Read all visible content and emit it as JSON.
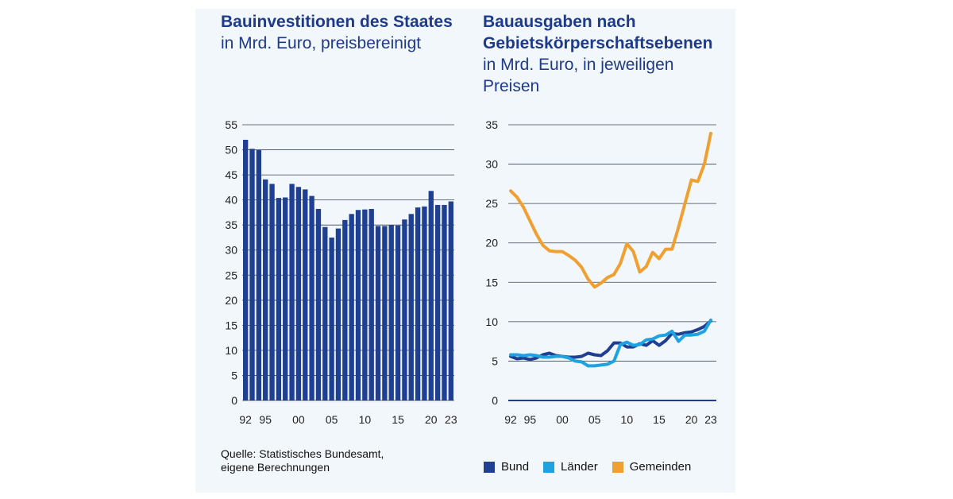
{
  "colors": {
    "bar": "#1f3f93",
    "bund": "#1f3f93",
    "laender": "#1ea3e0",
    "gemeinden": "#f0a030",
    "grid": "#3c4654",
    "axis": "#1f3f93"
  },
  "left": {
    "title_bold": "Bauinvestitionen des Staates",
    "title_rest": " in Mrd. Euro, preisbereinigt"
  },
  "right": {
    "title_bold": "Bauausgaben nach Gebietskörperschafts­ebenen",
    "title_rest": " in Mrd. Euro, in jeweiligen Preisen"
  },
  "source": {
    "line1": "Quelle: Statistisches Bundesamt,",
    "line2": "eigene Berechnungen"
  },
  "chart_data": [
    {
      "type": "bar",
      "title": "Bauinvestitionen des Staates in Mrd. Euro, preisbereinigt",
      "ylim": [
        0,
        55
      ],
      "yticks": [
        0,
        5,
        10,
        15,
        20,
        25,
        30,
        35,
        40,
        45,
        50,
        55
      ],
      "x_tick_labels": [
        "92",
        "95",
        "00",
        "05",
        "10",
        "15",
        "20",
        "23"
      ],
      "x_tick_years": [
        1992,
        1995,
        2000,
        2005,
        2010,
        2015,
        2020,
        2023
      ],
      "grid": true,
      "categories": [
        1992,
        1993,
        1994,
        1995,
        1996,
        1997,
        1998,
        1999,
        2000,
        2001,
        2002,
        2003,
        2004,
        2005,
        2006,
        2007,
        2008,
        2009,
        2010,
        2011,
        2012,
        2013,
        2014,
        2015,
        2016,
        2017,
        2018,
        2019,
        2020,
        2021,
        2022,
        2023
      ],
      "values": [
        52.0,
        50.2,
        50.0,
        44.1,
        43.2,
        40.4,
        40.5,
        43.2,
        42.6,
        42.1,
        40.8,
        38.2,
        34.6,
        32.5,
        34.3,
        36.0,
        37.2,
        38.0,
        38.1,
        38.2,
        34.8,
        34.8,
        35.0,
        34.9,
        36.1,
        37.2,
        38.5,
        38.7,
        41.8,
        39.0,
        39.0,
        39.7
      ]
    },
    {
      "type": "line",
      "title": "Bauausgaben nach Gebietskörperschaftsebenen in Mrd. Euro, in jeweiligen Preisen",
      "ylim": [
        0,
        35
      ],
      "yticks": [
        0,
        5,
        10,
        15,
        20,
        25,
        30,
        35
      ],
      "x_tick_labels": [
        "92",
        "95",
        "00",
        "05",
        "10",
        "15",
        "20",
        "23"
      ],
      "x_tick_years": [
        1992,
        1995,
        2000,
        2005,
        2010,
        2015,
        2020,
        2023
      ],
      "grid": true,
      "legend_position": "bottom",
      "x": [
        1992,
        1993,
        1994,
        1995,
        1996,
        1997,
        1998,
        1999,
        2000,
        2001,
        2002,
        2003,
        2004,
        2005,
        2006,
        2007,
        2008,
        2009,
        2010,
        2011,
        2012,
        2013,
        2014,
        2015,
        2016,
        2017,
        2018,
        2019,
        2020,
        2021,
        2022,
        2023
      ],
      "series": [
        {
          "name": "Bund",
          "color_key": "bund",
          "values": [
            5.6,
            5.3,
            5.4,
            5.2,
            5.4,
            5.8,
            6.0,
            5.7,
            5.6,
            5.5,
            5.5,
            5.6,
            6.0,
            5.8,
            5.7,
            6.3,
            7.3,
            7.3,
            6.8,
            6.8,
            7.2,
            7.0,
            7.6,
            7.0,
            7.6,
            8.5,
            8.4,
            8.6,
            8.7,
            9.0,
            9.4,
            10.1
          ]
        },
        {
          "name": "Länder",
          "color_key": "laender",
          "values": [
            5.8,
            5.8,
            5.7,
            5.8,
            5.7,
            5.5,
            5.5,
            5.6,
            5.6,
            5.4,
            5.0,
            4.9,
            4.4,
            4.4,
            4.5,
            4.6,
            5.0,
            7.1,
            7.4,
            7.0,
            7.1,
            7.7,
            7.8,
            8.2,
            8.3,
            8.8,
            7.5,
            8.3,
            8.3,
            8.4,
            8.8,
            10.2
          ]
        },
        {
          "name": "Gemeinden",
          "color_key": "gemeinden",
          "values": [
            26.6,
            25.8,
            24.5,
            22.8,
            21.1,
            19.7,
            19.0,
            18.9,
            18.9,
            18.4,
            17.8,
            16.9,
            15.4,
            14.4,
            14.9,
            15.6,
            16.0,
            17.4,
            19.9,
            18.9,
            16.3,
            17.0,
            18.8,
            18.0,
            19.2,
            19.2,
            22.0,
            25.0,
            28.0,
            27.8,
            30.0,
            33.9
          ]
        }
      ]
    }
  ]
}
